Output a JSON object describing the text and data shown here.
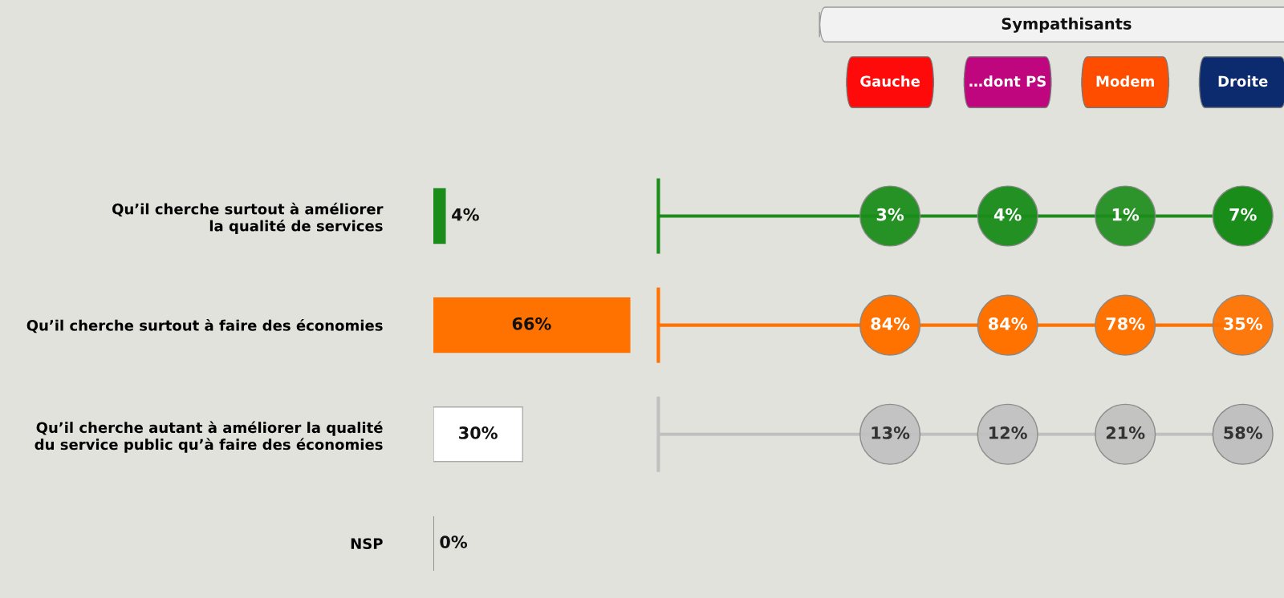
{
  "chart_data": [
    {
      "type": "bar",
      "orientation": "horizontal",
      "tick_labels": "y",
      "categories": [
        "Qu’il cherche surtout à améliorer\nla qualité de services",
        "Qu’il cherche surtout à faire des économies",
        "Qu’il cherche autant à améliorer la qualité\ndu service public qu’à faire des économies",
        "NSP"
      ],
      "values": [
        4,
        66,
        30,
        0
      ],
      "colors": [
        "#1a8c1a",
        "#ff7200",
        "#ffffff",
        "#707070"
      ],
      "value_labels": [
        "4%",
        "66%",
        "30%",
        "0%"
      ]
    },
    {
      "type": "other",
      "title": "Sympathisants",
      "categories": [
        "Gauche",
        "…dont PS",
        "Modem",
        "Droite"
      ],
      "colors": [
        "#ff0a0a",
        "#c0067f",
        "#ff4d00",
        "#0c2a6e"
      ],
      "series": [
        {
          "color": "#1a8c1a",
          "values": [
            3,
            4,
            1,
            7
          ],
          "value_labels": [
            "3%",
            "4%",
            "1%",
            "7%"
          ]
        },
        {
          "color": "#ff7200",
          "values": [
            84,
            84,
            78,
            35
          ],
          "value_labels": [
            "84%",
            "84%",
            "78%",
            "35%"
          ]
        },
        {
          "color": "#c0c0c0",
          "values": [
            13,
            12,
            21,
            58
          ],
          "value_labels": [
            "13%",
            "12%",
            "21%",
            "58%"
          ]
        }
      ]
    }
  ]
}
